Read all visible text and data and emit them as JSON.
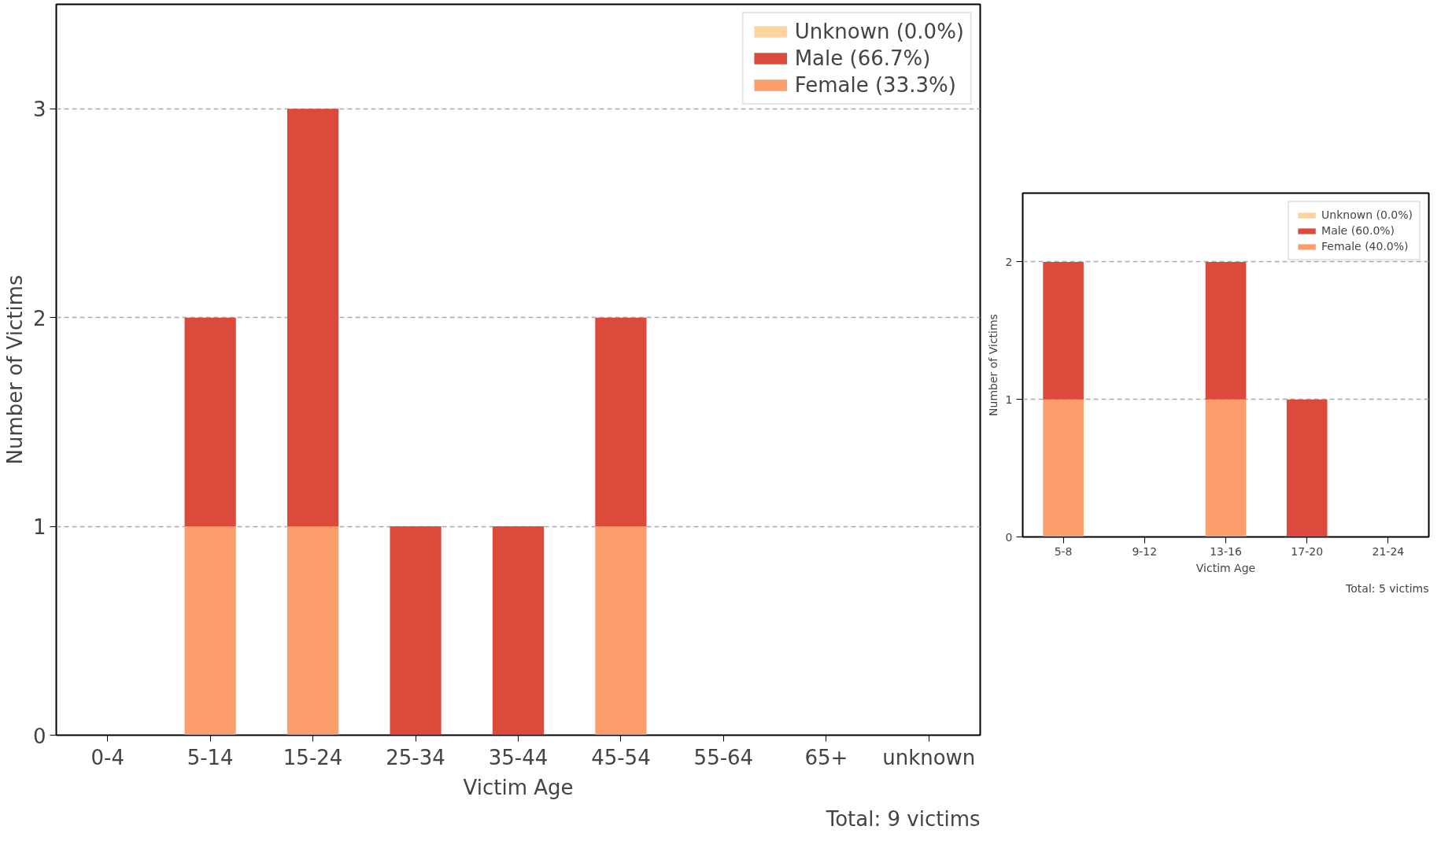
{
  "chart_data": [
    {
      "type": "bar",
      "stacked": true,
      "categories": [
        "0-4",
        "5-14",
        "15-24",
        "25-34",
        "35-44",
        "45-54",
        "55-64",
        "65+",
        "unknown"
      ],
      "xlabel": "Victim Age",
      "ylabel": "Number of Victims",
      "ylim": [
        0,
        3.5
      ],
      "yticks": [
        0,
        1,
        2,
        3
      ],
      "grid": "y",
      "legend": "top right",
      "annotations": [
        "Total: 9 victims"
      ],
      "series": [
        {
          "name": "Female (33.3%)",
          "color": "#fc9d6c",
          "values": [
            0,
            1,
            1,
            0,
            0,
            1,
            0,
            0,
            0
          ]
        },
        {
          "name": "Male (66.7%)",
          "color": "#dc4a3c",
          "values": [
            0,
            1,
            2,
            1,
            1,
            1,
            0,
            0,
            0
          ]
        },
        {
          "name": "Unknown (0.0%)",
          "color": "#fdd49e",
          "values": [
            0,
            0,
            0,
            0,
            0,
            0,
            0,
            0,
            0
          ]
        }
      ]
    },
    {
      "type": "bar",
      "stacked": true,
      "categories": [
        "5-8",
        "9-12",
        "13-16",
        "17-20",
        "21-24"
      ],
      "xlabel": "Victim Age",
      "ylabel": "Number of Victims",
      "ylim": [
        0,
        2.5
      ],
      "yticks": [
        0,
        1,
        2
      ],
      "grid": "y",
      "legend": "top right",
      "annotations": [
        "Total: 5 victims"
      ],
      "series": [
        {
          "name": "Female (40.0%)",
          "color": "#fc9d6c",
          "values": [
            1,
            0,
            1,
            0,
            0
          ]
        },
        {
          "name": "Male (60.0%)",
          "color": "#dc4a3c",
          "values": [
            1,
            0,
            1,
            1,
            0
          ]
        },
        {
          "name": "Unknown (0.0%)",
          "color": "#fdd49e",
          "values": [
            0,
            0,
            0,
            0,
            0
          ]
        }
      ]
    }
  ]
}
